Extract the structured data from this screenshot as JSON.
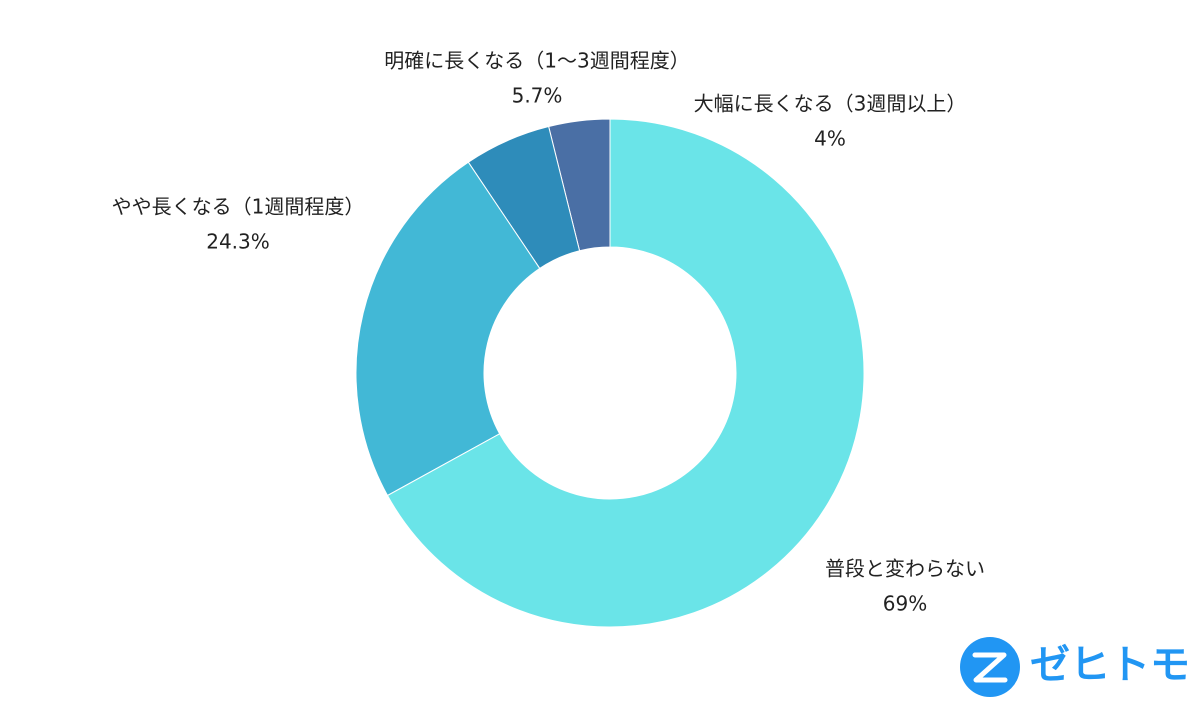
{
  "chart_data": {
    "type": "donut",
    "categories": [
      "普段と変わらない",
      "やや長くなる（1週間程度）",
      "明確に長くなる（1〜3週間程度）",
      "大幅に長くなる（3週間以上）"
    ],
    "values": [
      69,
      24.3,
      5.7,
      4
    ],
    "value_labels": [
      "69%",
      "24.3%",
      "5.7%",
      "4%"
    ],
    "colors": [
      "#6ae4e8",
      "#42b8d6",
      "#2e8cba",
      "#4a6fa5"
    ]
  },
  "logo": {
    "text": "ゼヒトモ"
  }
}
